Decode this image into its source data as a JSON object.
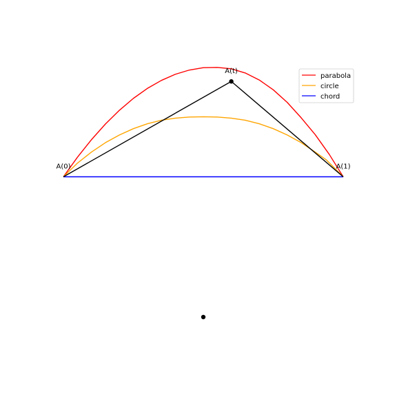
{
  "chart_data": {
    "type": "line",
    "xlim": [
      -1.0,
      1.0
    ],
    "ylim": [
      -1.0,
      1.0
    ],
    "grid": false,
    "axes_visible": false,
    "legend": {
      "placement": "top-right",
      "entries": [
        "parabola",
        "circle",
        "chord"
      ]
    },
    "series": [
      {
        "name": "parabola",
        "color": "#ff0000",
        "x": [
          -1.0,
          -0.9,
          -0.8,
          -0.7,
          -0.6,
          -0.5,
          -0.4,
          -0.3,
          -0.2,
          -0.1,
          0.0,
          0.1,
          0.2,
          0.3,
          0.4,
          0.5,
          0.6,
          0.7,
          0.8,
          0.9,
          1.0
        ],
        "y": [
          0.0,
          0.139,
          0.264,
          0.376,
          0.474,
          0.559,
          0.63,
          0.687,
          0.731,
          0.761,
          0.778,
          0.78,
          0.77,
          0.74,
          0.69,
          0.62,
          0.53,
          0.42,
          0.3,
          0.16,
          0.0
        ]
      },
      {
        "name": "circle",
        "color": "#ffa500",
        "x": [
          -1.0,
          -0.9,
          -0.8,
          -0.7,
          -0.6,
          -0.5,
          -0.4,
          -0.3,
          -0.2,
          -0.1,
          0.0,
          0.1,
          0.2,
          0.3,
          0.4,
          0.5,
          0.6,
          0.7,
          0.8,
          0.88,
          1.0
        ],
        "y": [
          0.0,
          0.097,
          0.176,
          0.243,
          0.298,
          0.343,
          0.378,
          0.403,
          0.418,
          0.426,
          0.428,
          0.426,
          0.418,
          0.403,
          0.378,
          0.343,
          0.298,
          0.243,
          0.176,
          0.12,
          0.0
        ]
      },
      {
        "name": "chord",
        "color": "#0000ff",
        "x": [
          -1.0,
          1.0
        ],
        "y": [
          0.0,
          0.0
        ]
      }
    ],
    "segments": [
      {
        "from": [
          -1.0,
          0.0
        ],
        "to": [
          0.2,
          0.68
        ],
        "color": "#000000"
      },
      {
        "from": [
          0.2,
          0.68
        ],
        "to": [
          1.0,
          0.0
        ],
        "color": "#000000"
      }
    ],
    "points": [
      {
        "x": 0.2,
        "y": 0.68,
        "label": "A(t)"
      },
      {
        "x": -1.0,
        "y": 0.0,
        "label": "A(0)"
      },
      {
        "x": 1.0,
        "y": 0.0,
        "label": "A(1)"
      },
      {
        "x": 0.0,
        "y": -1.0,
        "label": ""
      }
    ]
  }
}
